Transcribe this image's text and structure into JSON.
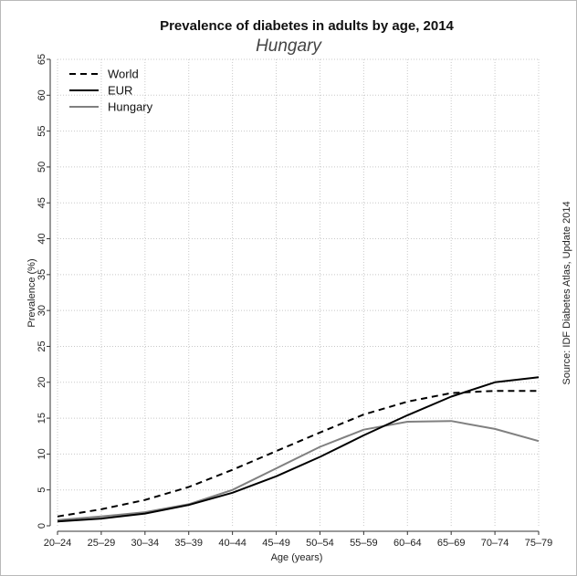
{
  "chart_data": {
    "type": "line",
    "title": "Prevalence of diabetes in adults by age, 2014",
    "subtitle": "Hungary",
    "xlabel": "Age (years)",
    "ylabel": "Prevalence (%)",
    "source": "Source: IDF Diabetes Atlas, Update 2014",
    "ylim": [
      0,
      65
    ],
    "yticks": [
      0,
      5,
      10,
      15,
      20,
      25,
      30,
      35,
      40,
      45,
      50,
      55,
      60,
      65
    ],
    "grid": true,
    "legend_position": "top-left",
    "categories": [
      "20–24",
      "25–29",
      "30–34",
      "35–39",
      "40–44",
      "45–49",
      "50–54",
      "55–59",
      "60–64",
      "65–69",
      "70–74",
      "75–79"
    ],
    "series": [
      {
        "name": "World",
        "style": "dashed",
        "color": "#000000",
        "values": [
          1.3,
          2.3,
          3.6,
          5.4,
          7.8,
          10.4,
          13.0,
          15.5,
          17.3,
          18.5,
          18.8,
          18.8
        ]
      },
      {
        "name": "EUR",
        "style": "solid",
        "color": "#000000",
        "values": [
          0.6,
          1.0,
          1.7,
          2.9,
          4.6,
          6.9,
          9.6,
          12.6,
          15.4,
          18.0,
          20.0,
          20.7
        ]
      },
      {
        "name": "Hungary",
        "style": "solid",
        "color": "#808080",
        "values": [
          0.8,
          1.3,
          1.9,
          3.0,
          5.0,
          8.0,
          11.0,
          13.4,
          14.5,
          14.6,
          13.5,
          11.8
        ]
      }
    ]
  }
}
